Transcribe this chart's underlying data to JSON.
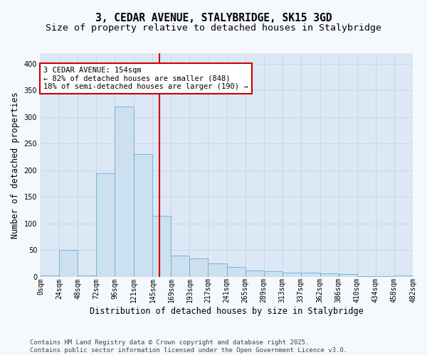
{
  "title_line1": "3, CEDAR AVENUE, STALYBRIDGE, SK15 3GD",
  "title_line2": "Size of property relative to detached houses in Stalybridge",
  "xlabel": "Distribution of detached houses by size in Stalybridge",
  "ylabel": "Number of detached properties",
  "bin_edges": [
    0,
    24,
    48,
    72,
    96,
    121,
    145,
    169,
    193,
    217,
    241,
    265,
    289,
    313,
    337,
    362,
    386,
    410,
    434,
    458,
    482
  ],
  "bar_heights": [
    2,
    50,
    2,
    195,
    320,
    230,
    115,
    40,
    35,
    25,
    18,
    12,
    10,
    8,
    8,
    6,
    5,
    1,
    1,
    2
  ],
  "bar_color": "#cce0f0",
  "bar_edge_color": "#6aaed6",
  "property_size": 154,
  "vline_color": "#cc0000",
  "annotation_text": "3 CEDAR AVENUE: 154sqm\n← 82% of detached houses are smaller (848)\n18% of semi-detached houses are larger (190) →",
  "annotation_box_color": "#ffffff",
  "annotation_box_edge": "#cc0000",
  "ylim": [
    0,
    420
  ],
  "yticks": [
    0,
    50,
    100,
    150,
    200,
    250,
    300,
    350,
    400
  ],
  "grid_color": "#c8d8e8",
  "plot_bg_color": "#dce8f5",
  "fig_bg_color": "#f5f8fc",
  "footer_line1": "Contains HM Land Registry data © Crown copyright and database right 2025.",
  "footer_line2": "Contains public sector information licensed under the Open Government Licence v3.0.",
  "title_fontsize": 10.5,
  "subtitle_fontsize": 9.5,
  "axis_label_fontsize": 8.5,
  "tick_fontsize": 7,
  "annotation_fontsize": 7.5,
  "footer_fontsize": 6.5
}
